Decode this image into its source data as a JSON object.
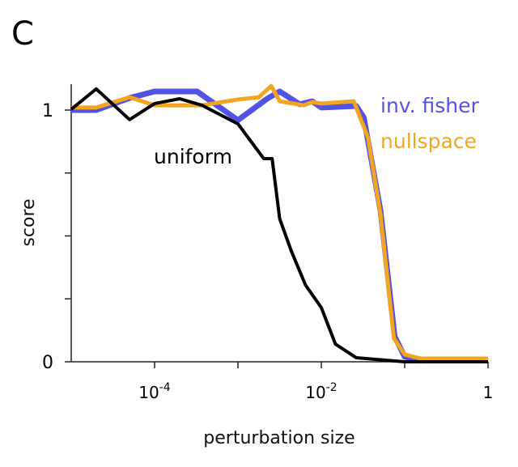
{
  "panel_label": "C",
  "chart_data": {
    "type": "line",
    "title": "",
    "xlabel": "perturbation size",
    "ylabel": "score",
    "xscale": "log10",
    "xlim_log10": [
      -5,
      0
    ],
    "ylim": [
      0,
      1.1
    ],
    "x_ticks": [
      {
        "log10": -4,
        "base": "10",
        "exp": "-4"
      },
      {
        "log10": -3,
        "base": "",
        "exp": ""
      },
      {
        "log10": -2,
        "base": "10",
        "exp": "-2"
      },
      {
        "log10": -1,
        "base": "",
        "exp": ""
      },
      {
        "log10": 0,
        "base": "1",
        "exp": ""
      }
    ],
    "y_ticks": [
      {
        "value": 0,
        "label": "0"
      },
      {
        "value": 0.25,
        "label": ""
      },
      {
        "value": 0.5,
        "label": ""
      },
      {
        "value": 0.75,
        "label": ""
      },
      {
        "value": 1,
        "label": "1"
      }
    ],
    "grid": false,
    "series": [
      {
        "name": "inv. fisher",
        "color": "#5352e3",
        "log10_x": [
          -5,
          -4.7,
          -4.3,
          -4.0,
          -3.49,
          -3.0,
          -2.65,
          -2.5,
          -2.26,
          -2.11,
          -2.0,
          -1.58,
          -1.49,
          -1.29,
          -1.12,
          -1.0,
          -0.81,
          0
        ],
        "y": [
          1.0,
          1.0,
          1.048,
          1.074,
          1.074,
          0.96,
          1.045,
          1.074,
          1.023,
          1.035,
          1.01,
          1.016,
          0.97,
          0.6,
          0.1,
          0.02,
          0.006,
          0.006
        ]
      },
      {
        "name": "nullspace",
        "color": "#f2a51f",
        "log10_x": [
          -5,
          -4.7,
          -4.3,
          -4.0,
          -3.43,
          -3.0,
          -2.75,
          -2.6,
          -2.5,
          -2.21,
          -2.11,
          -2.0,
          -1.61,
          -1.44,
          -1.29,
          -1.13,
          -1.0,
          -0.81,
          0
        ],
        "y": [
          1.01,
          1.01,
          1.051,
          1.019,
          1.019,
          1.042,
          1.051,
          1.096,
          1.035,
          1.019,
          1.032,
          1.026,
          1.035,
          0.89,
          0.585,
          0.093,
          0.029,
          0.013,
          0.013
        ]
      },
      {
        "name": "uniform",
        "color": "#000000",
        "log10_x": [
          -5,
          -4.7,
          -4.3,
          -4.0,
          -3.7,
          -3.43,
          -3.0,
          -2.69,
          -2.59,
          -2.5,
          -2.36,
          -2.19,
          -2.0,
          -1.83,
          -1.58,
          -1.0,
          0
        ],
        "y": [
          1.003,
          1.084,
          0.962,
          1.026,
          1.045,
          1.019,
          0.945,
          0.807,
          0.807,
          0.569,
          0.44,
          0.305,
          0.215,
          0.07,
          0.016,
          0,
          0
        ]
      }
    ]
  }
}
